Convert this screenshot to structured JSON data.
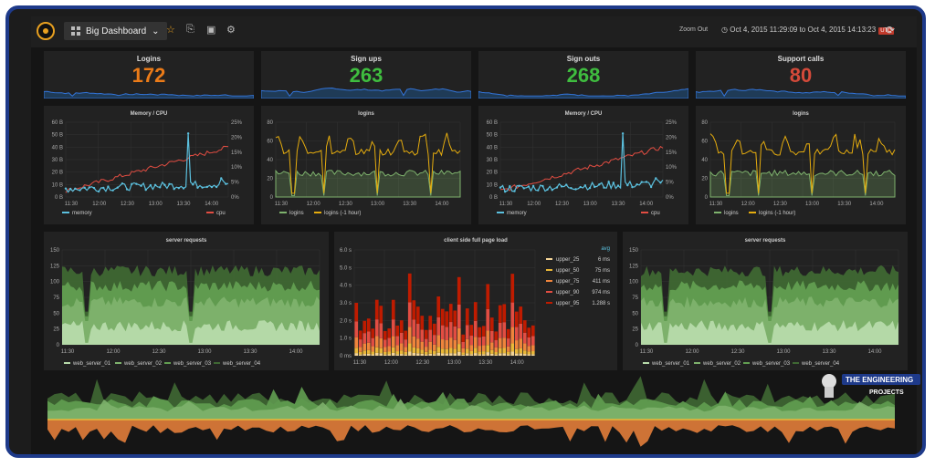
{
  "topbar": {
    "dashboard_name": "Big Dashboard",
    "zoom_out": "Zoom Out",
    "time_range": "Oct 4, 2015 11:29:09 to Oct 4, 2015 14:13:23",
    "tz": "UTC"
  },
  "stats": [
    {
      "title": "Logins",
      "value": "172",
      "color": "#eb7b18"
    },
    {
      "title": "Sign ups",
      "value": "263",
      "color": "#3fbd3f"
    },
    {
      "title": "Sign outs",
      "value": "268",
      "color": "#3fbd3f"
    },
    {
      "title": "Support calls",
      "value": "80",
      "color": "#d44a3a"
    }
  ],
  "time_ticks": [
    "11:30",
    "12:00",
    "12:30",
    "13:00",
    "13:30",
    "14:00"
  ],
  "memcpu": {
    "title": "Memory / CPU",
    "y_left": [
      "60 B",
      "50 B",
      "40 B",
      "30 B",
      "20 B",
      "10 B",
      "0 B"
    ],
    "y_right": [
      "25%",
      "20%",
      "15%",
      "10%",
      "5%",
      "0%"
    ],
    "legend": [
      "memory",
      "cpu"
    ],
    "colors": {
      "memory": "#5bc0de",
      "cpu": "#e24d42"
    }
  },
  "logins": {
    "title": "logins",
    "y": [
      "80",
      "60",
      "40",
      "20",
      "0"
    ],
    "legend": [
      "logins",
      "logins (-1 hour)"
    ],
    "colors": {
      "logins": "#7eb26d",
      "logins (-1 hour)": "#e5ac0e"
    }
  },
  "server_requests": {
    "title": "server requests",
    "y": [
      "150",
      "125",
      "100",
      "75",
      "50",
      "25",
      "0"
    ],
    "legend": [
      "web_server_01",
      "web_server_02",
      "web_server_03",
      "web_server_04"
    ],
    "colors": [
      "#b7dbab",
      "#7eb26d",
      "#629e51",
      "#3f6833"
    ]
  },
  "pageload": {
    "title": "client side full page load",
    "y": [
      "6.0 s",
      "5.0 s",
      "4.0 s",
      "3.0 s",
      "2.0 s",
      "1.0 s",
      "0 ms"
    ],
    "avg_header": "avg",
    "legend": [
      {
        "name": "upper_25",
        "avg": "6 ms",
        "color": "#f4d598"
      },
      {
        "name": "upper_50",
        "avg": "75 ms",
        "color": "#eab839"
      },
      {
        "name": "upper_75",
        "avg": "411 ms",
        "color": "#ef843c"
      },
      {
        "name": "upper_90",
        "avg": "974 ms",
        "color": "#e24d42"
      },
      {
        "name": "upper_95",
        "avg": "1.288 s",
        "color": "#bf1b00"
      }
    ]
  },
  "watermark": {
    "line1": "THE ENGINEERING",
    "line2": "PROJECTS"
  }
}
